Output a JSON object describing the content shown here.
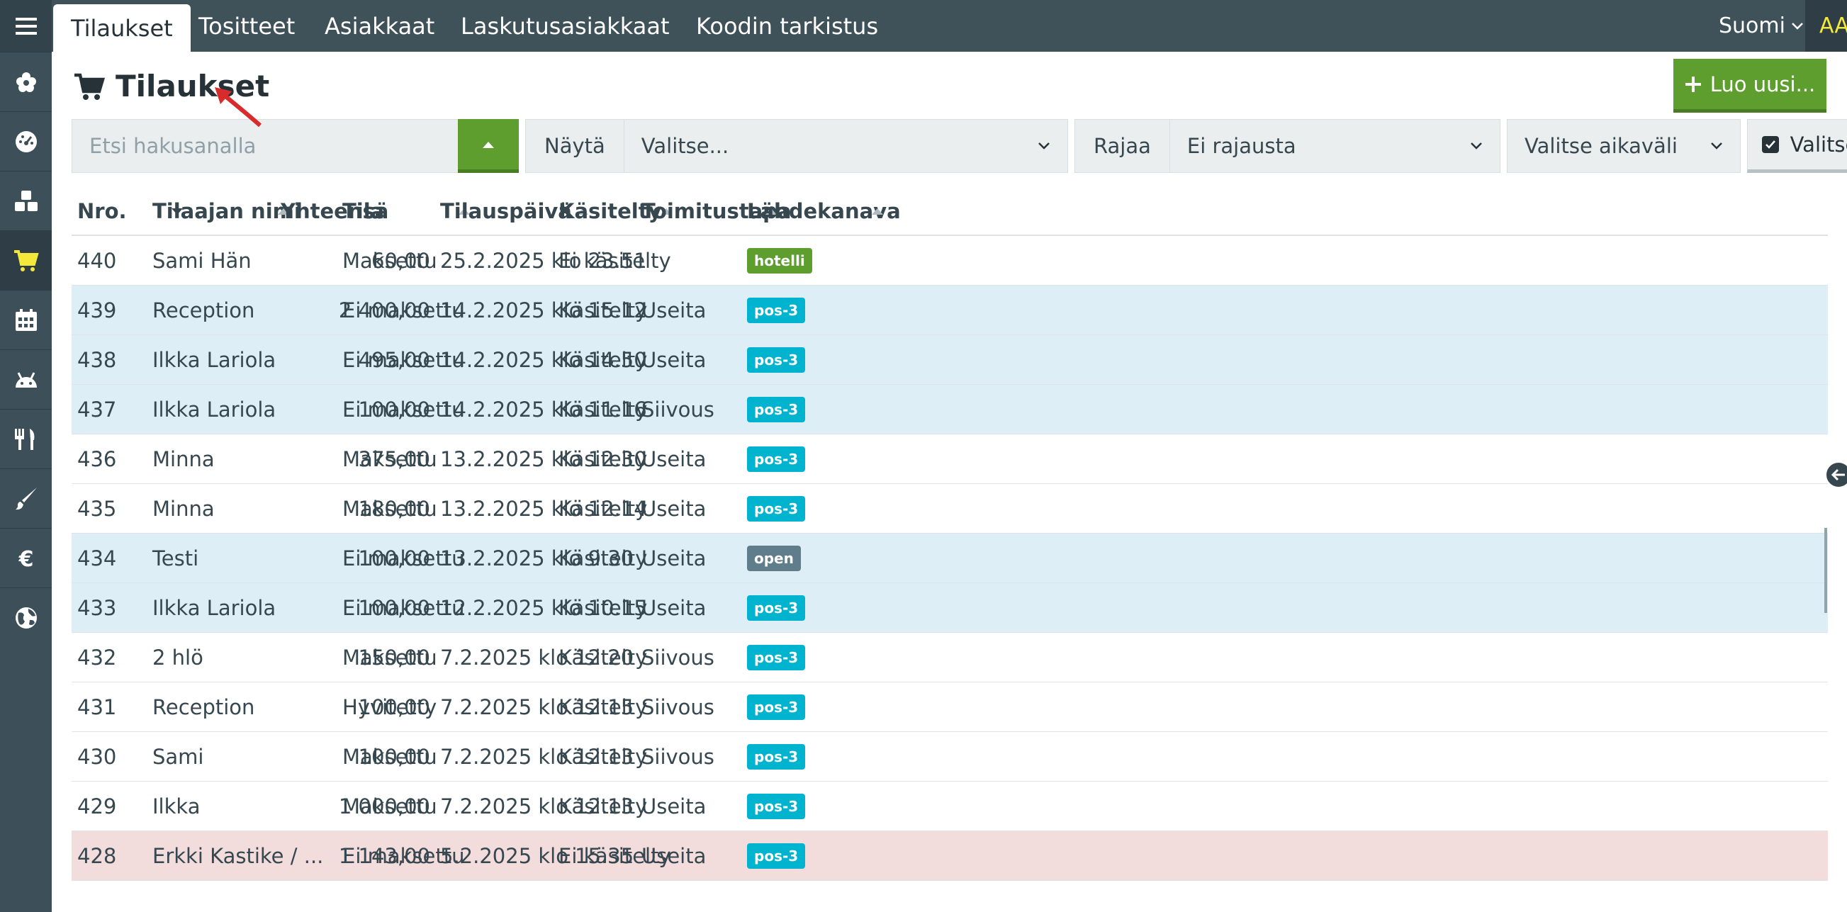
{
  "topbar": {
    "tabs": [
      {
        "label": "Tilaukset"
      },
      {
        "label": "Tositteet"
      },
      {
        "label": "Asiakkaat"
      },
      {
        "label": "Laskutusasiakkaat"
      },
      {
        "label": "Koodin tarkistus"
      }
    ],
    "language": "Suomi",
    "font_size_toggle": "AA"
  },
  "sidebar": {
    "items": [
      {
        "icon": "flower-icon"
      },
      {
        "icon": "dashboard-gauge-icon"
      },
      {
        "icon": "cubes-icon"
      },
      {
        "icon": "shopping-cart-icon",
        "active": true
      },
      {
        "icon": "calendar-icon"
      },
      {
        "icon": "android-icon"
      },
      {
        "icon": "cutlery-icon"
      },
      {
        "icon": "paint-brush-icon"
      },
      {
        "icon": "euro-icon"
      },
      {
        "icon": "globe-icon"
      }
    ],
    "active_color": "#f4e83a"
  },
  "page": {
    "title": "Tilaukset",
    "create_button": "Luo uusi..."
  },
  "filters": {
    "search_placeholder": "Etsi hakusanalla",
    "show_label": "Näytä",
    "show_value": "Valitse...",
    "limit_label": "Rajaa",
    "limit_value": "Ei rajausta",
    "period_value": "Valitse aikaväli",
    "select_button": "Valitse"
  },
  "table": {
    "columns": [
      "Nro.",
      "Tilaajan nimi",
      "Yhteensä",
      "Tila",
      "Tilauspäivä",
      "Käsitelty",
      "Toimitustapa",
      "Lähdekanava"
    ],
    "rows": [
      {
        "nro": "440",
        "name": "Sami Hän",
        "total": "60,00",
        "status": "Maksettu",
        "date": "25.2.2025 klo 23.51",
        "handled": "Ei käsitelty",
        "delivery": "",
        "channel": "hotelli",
        "tone": "plain"
      },
      {
        "nro": "439",
        "name": "Reception",
        "total": "2 400,00",
        "status": "Ei maksettu",
        "date": "14.2.2025 klo 15.12",
        "handled": "Käsitelty",
        "delivery": "Useita",
        "channel": "pos-3",
        "tone": "unpaid"
      },
      {
        "nro": "438",
        "name": "Ilkka Lariola",
        "total": "495,00",
        "status": "Ei maksettu",
        "date": "14.2.2025 klo 14.50",
        "handled": "Käsitelty",
        "delivery": "Useita",
        "channel": "pos-3",
        "tone": "unpaid"
      },
      {
        "nro": "437",
        "name": "Ilkka Lariola",
        "total": "100,00",
        "status": "Ei maksettu",
        "date": "14.2.2025 klo 11.16",
        "handled": "Käsitelty",
        "delivery": "Siivous",
        "channel": "pos-3",
        "tone": "unpaid"
      },
      {
        "nro": "436",
        "name": "Minna",
        "total": "375,00",
        "status": "Maksettu",
        "date": "13.2.2025 klo 12.30",
        "handled": "Käsitelty",
        "delivery": "Useita",
        "channel": "pos-3",
        "tone": "plain"
      },
      {
        "nro": "435",
        "name": "Minna",
        "total": "180,00",
        "status": "Maksettu",
        "date": "13.2.2025 klo 12.14",
        "handled": "Käsitelty",
        "delivery": "Useita",
        "channel": "pos-3",
        "tone": "plain"
      },
      {
        "nro": "434",
        "name": "Testi",
        "total": "100,00",
        "status": "Ei maksettu",
        "date": "13.2.2025 klo 9.30",
        "handled": "Käsitelty",
        "delivery": "Useita",
        "channel": "open",
        "tone": "unpaid"
      },
      {
        "nro": "433",
        "name": "Ilkka Lariola",
        "total": "100,00",
        "status": "Ei maksettu",
        "date": "12.2.2025 klo 10.15",
        "handled": "Käsitelty",
        "delivery": "Useita",
        "channel": "pos-3",
        "tone": "unpaid"
      },
      {
        "nro": "432",
        "name": "2 hlö",
        "total": "150,00",
        "status": "Maksettu",
        "date": "7.2.2025 klo 12.20",
        "handled": "Käsitelty",
        "delivery": "Siivous",
        "channel": "pos-3",
        "tone": "plain"
      },
      {
        "nro": "431",
        "name": "Reception",
        "total": "100,00",
        "status": "Hyvitetty",
        "date": "7.2.2025 klo 12.15",
        "handled": "Käsitelty",
        "delivery": "Siivous",
        "channel": "pos-3",
        "tone": "plain"
      },
      {
        "nro": "430",
        "name": "Sami",
        "total": "100,00",
        "status": "Maksettu",
        "date": "7.2.2025 klo 12.13",
        "handled": "Käsitelty",
        "delivery": "Siivous",
        "channel": "pos-3",
        "tone": "plain"
      },
      {
        "nro": "429",
        "name": "Ilkka",
        "total": "1 000,00",
        "status": "Maksettu",
        "date": "7.2.2025 klo 12.13",
        "handled": "Käsitelty",
        "delivery": "Useita",
        "channel": "pos-3",
        "tone": "plain"
      },
      {
        "nro": "428",
        "name": "Erkki Kastike / ...",
        "total": "1 143,00",
        "status": "Ei maksettu",
        "date": "5.2.2025 klo 15.35",
        "handled": "Ei käsitelty",
        "delivery": "Useita",
        "channel": "pos-3",
        "tone": "overdue"
      }
    ],
    "channel_colors": {
      "hotelli": "#5d9e2f",
      "pos-3": "#00b4d0",
      "open": "#607d8b"
    }
  }
}
